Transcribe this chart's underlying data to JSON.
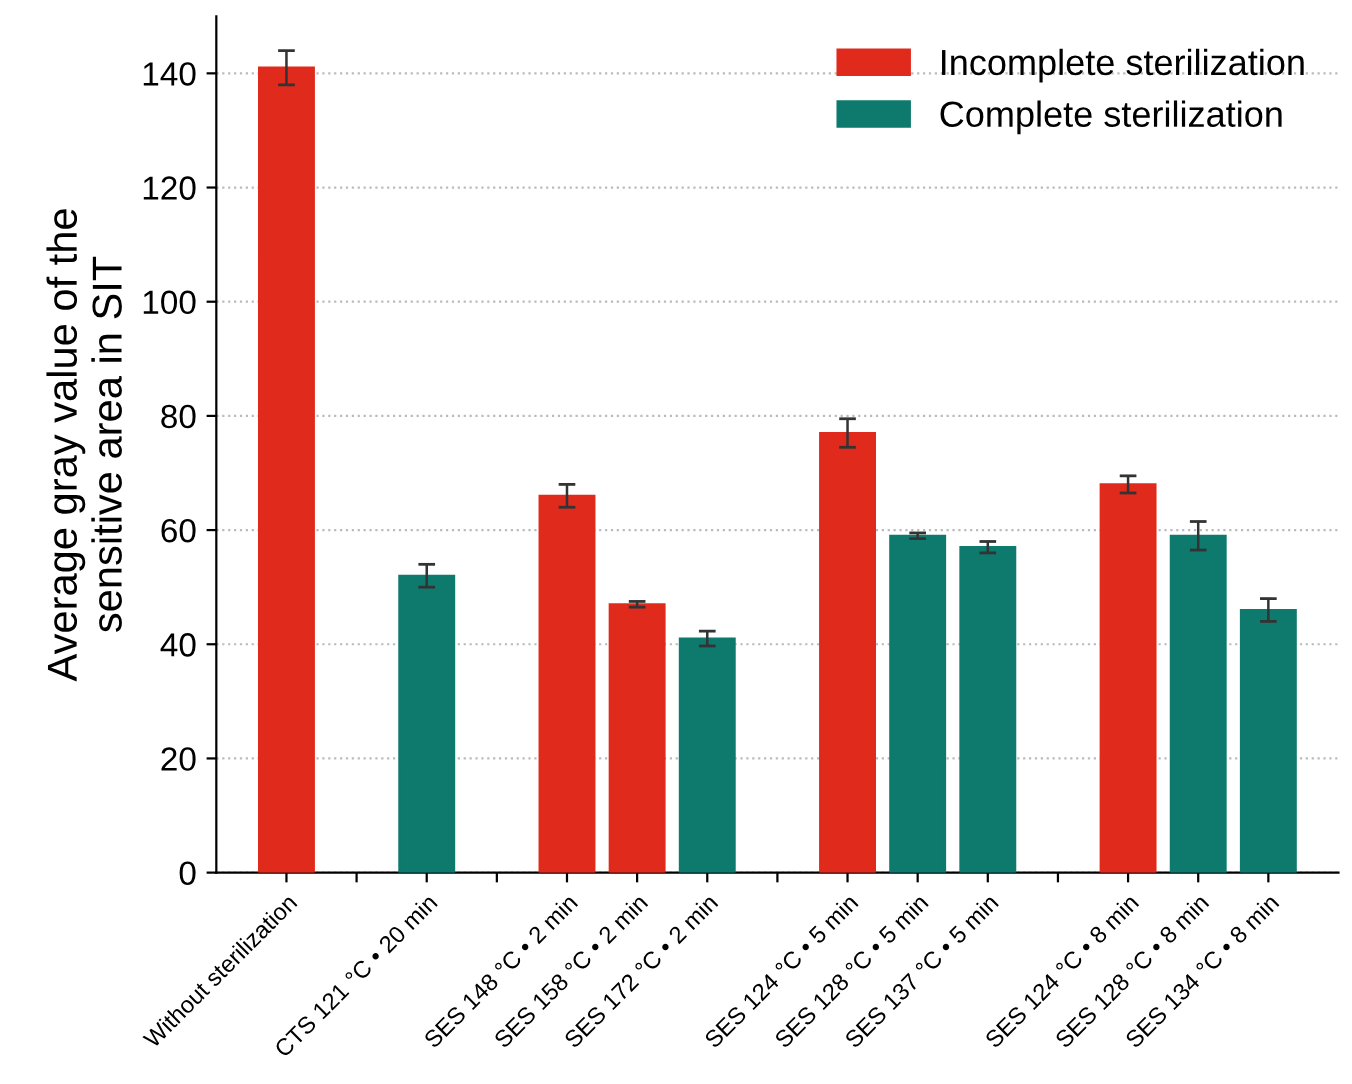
{
  "chart_data": {
    "type": "bar",
    "ylabel": "Average gray value of the\nsensitive area in SIT",
    "categories": [
      "Without sterilization",
      null,
      "CTS 121 °C • 20 min",
      null,
      "SES 148 °C • 2 min",
      "SES 158 °C • 2 min",
      "SES 172 °C • 2 min",
      null,
      "SES 124 °C • 5 min",
      "SES 128 °C • 5 min",
      "SES 137 °C • 5 min",
      null,
      "SES 124 °C • 8 min",
      "SES 128 °C • 8 min",
      "SES 134 °C • 8 min"
    ],
    "series": [
      {
        "name": "Incomplete sterilization",
        "color": "#e02a1c",
        "values": [
          141,
          null,
          null,
          null,
          66,
          47,
          null,
          null,
          77,
          null,
          null,
          null,
          68,
          null,
          null
        ],
        "errors": [
          3,
          null,
          null,
          null,
          2,
          0.5,
          null,
          null,
          2.5,
          null,
          null,
          null,
          1.5,
          null,
          null
        ]
      },
      {
        "name": "Complete sterilization",
        "color": "#0e7a6e",
        "values": [
          null,
          null,
          52,
          null,
          null,
          null,
          41,
          null,
          null,
          59,
          57,
          null,
          null,
          59,
          46
        ],
        "errors": [
          null,
          null,
          2,
          null,
          null,
          null,
          1.3,
          null,
          null,
          0.5,
          1,
          null,
          null,
          2.5,
          2
        ]
      }
    ],
    "ylim": [
      0,
      150
    ],
    "yticks": [
      0,
      20,
      40,
      60,
      80,
      100,
      120,
      140
    ],
    "grid": "y",
    "legend": "top right"
  }
}
